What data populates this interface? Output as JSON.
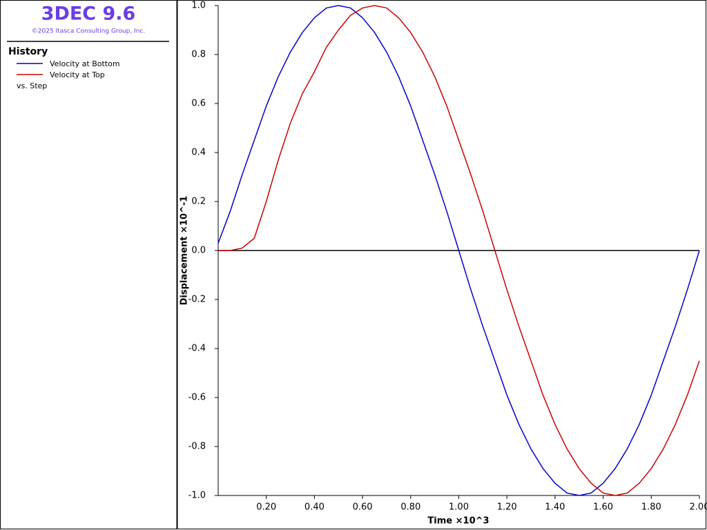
{
  "header": {
    "title": "3DEC 9.6",
    "copyright": "©2025 Itasca Consulting Group, Inc."
  },
  "sidebar": {
    "heading": "History",
    "footer": "vs. Step"
  },
  "chart_data": {
    "type": "line",
    "xlabel": "Time ×10^3",
    "ylabel": "Displacement  ×10^-1",
    "x": [
      0,
      0.05,
      0.1,
      0.15,
      0.2,
      0.25,
      0.3,
      0.35,
      0.4,
      0.45,
      0.5,
      0.55,
      0.6,
      0.65,
      0.7,
      0.75,
      0.8,
      0.85,
      0.9,
      0.95,
      1.0,
      1.05,
      1.1,
      1.15,
      1.2,
      1.25,
      1.3,
      1.35,
      1.4,
      1.45,
      1.5,
      1.55,
      1.6,
      1.65,
      1.7,
      1.75,
      1.8,
      1.85,
      1.9,
      1.95,
      2.0
    ],
    "series": [
      {
        "name": "Velocity at Bottom",
        "color": "#0000cc",
        "values": [
          0.03,
          0.16,
          0.31,
          0.45,
          0.59,
          0.71,
          0.81,
          0.89,
          0.95,
          0.99,
          1.0,
          0.99,
          0.95,
          0.89,
          0.81,
          0.71,
          0.59,
          0.45,
          0.31,
          0.16,
          0.0,
          -0.16,
          -0.31,
          -0.45,
          -0.59,
          -0.71,
          -0.81,
          -0.89,
          -0.95,
          -0.99,
          -1.0,
          -0.99,
          -0.95,
          -0.89,
          -0.81,
          -0.71,
          -0.59,
          -0.45,
          -0.31,
          -0.16,
          0.0
        ]
      },
      {
        "name": "Velocity at Top",
        "color": "#cc0000",
        "values": [
          0,
          0,
          0.01,
          0.05,
          0.2,
          0.37,
          0.52,
          0.64,
          0.73,
          0.83,
          0.9,
          0.96,
          0.99,
          1.0,
          0.99,
          0.95,
          0.89,
          0.81,
          0.71,
          0.59,
          0.45,
          0.31,
          0.16,
          0.0,
          -0.16,
          -0.31,
          -0.45,
          -0.59,
          -0.71,
          -0.81,
          -0.89,
          -0.95,
          -0.99,
          -1.0,
          -0.99,
          -0.95,
          -0.89,
          -0.81,
          -0.71,
          -0.59,
          -0.45
        ]
      }
    ],
    "xlim": [
      0,
      2
    ],
    "xticks": [
      {
        "value": 0.2,
        "label": "0.20"
      },
      {
        "value": 0.4,
        "label": "0.40"
      },
      {
        "value": 0.6,
        "label": "0.60"
      },
      {
        "value": 0.8,
        "label": "0.80"
      },
      {
        "value": 1.0,
        "label": "1.00"
      },
      {
        "value": 1.2,
        "label": "1.20"
      },
      {
        "value": 1.4,
        "label": "1.40"
      },
      {
        "value": 1.6,
        "label": "1.60"
      },
      {
        "value": 1.8,
        "label": "1.80"
      },
      {
        "value": 2.0,
        "label": "2.00"
      }
    ],
    "ylim": [
      -1,
      1
    ],
    "yticks": [
      {
        "value": -1,
        "label": "-1.0"
      },
      {
        "value": -0.8,
        "label": "-0.8"
      },
      {
        "value": -0.6,
        "label": "-0.6"
      },
      {
        "value": -0.4,
        "label": "-0.4"
      },
      {
        "value": -0.2,
        "label": "-0.2"
      },
      {
        "value": 0,
        "label": "0.0"
      },
      {
        "value": 0.2,
        "label": "0.2"
      },
      {
        "value": 0.4,
        "label": "0.4"
      },
      {
        "value": 0.6,
        "label": "0.6"
      },
      {
        "value": 0.8,
        "label": "0.8"
      },
      {
        "value": 1,
        "label": "1.0"
      }
    ],
    "grid": false
  }
}
